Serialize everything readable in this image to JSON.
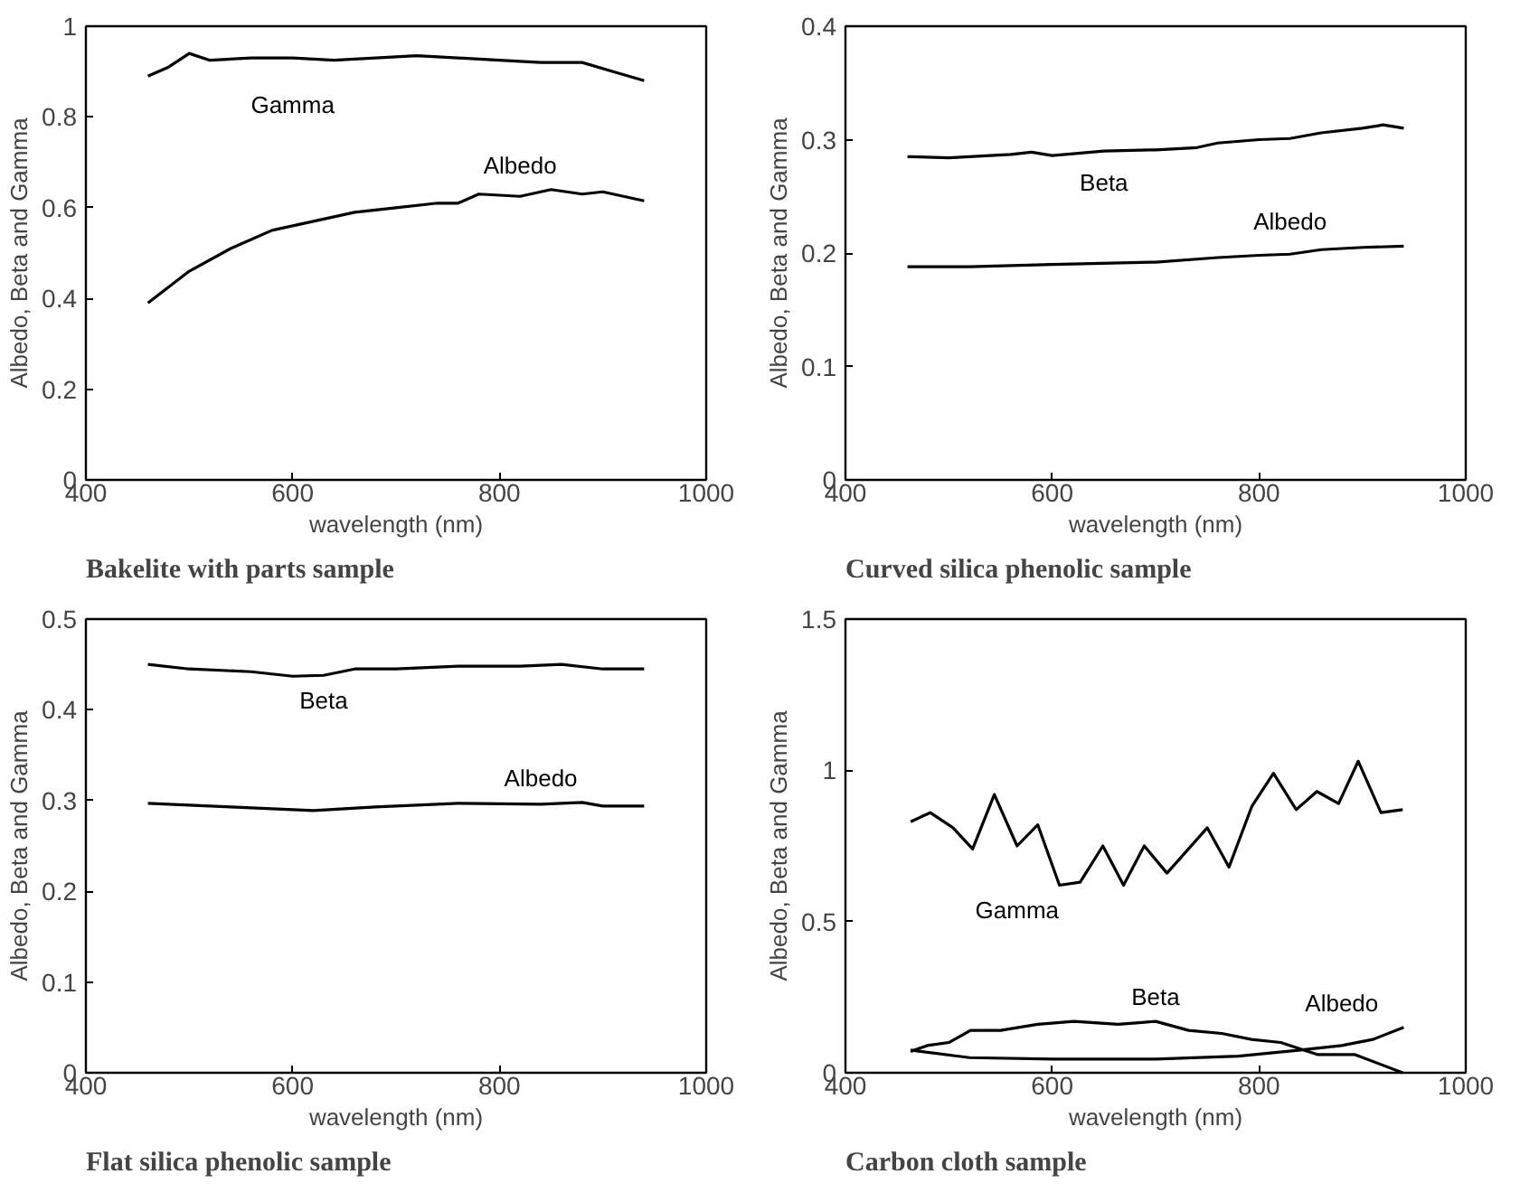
{
  "chart_data": [
    {
      "type": "line",
      "title": "Bakelite with parts sample",
      "xlabel": "wavelength (nm)",
      "ylabel": "Albedo, Beta and Gamma",
      "xlim": [
        400,
        1000
      ],
      "xticks": [
        400,
        600,
        800,
        1000
      ],
      "ylim": [
        0,
        1
      ],
      "yticks": [
        0,
        0.2,
        0.4,
        0.6,
        0.8,
        1
      ],
      "grid": false,
      "legend": false,
      "series": [
        {
          "name": "Gamma",
          "color": "#000000",
          "x": [
            460,
            480,
            500,
            520,
            560,
            600,
            640,
            680,
            720,
            760,
            800,
            840,
            880,
            910,
            940
          ],
          "values": [
            0.89,
            0.91,
            0.94,
            0.925,
            0.93,
            0.93,
            0.925,
            0.93,
            0.935,
            0.93,
            0.925,
            0.92,
            0.92,
            0.9,
            0.88
          ]
        },
        {
          "name": "Albedo",
          "color": "#000000",
          "x": [
            460,
            500,
            540,
            580,
            620,
            660,
            700,
            740,
            760,
            780,
            820,
            850,
            880,
            900,
            940
          ],
          "values": [
            0.39,
            0.46,
            0.51,
            0.55,
            0.57,
            0.59,
            0.6,
            0.61,
            0.61,
            0.63,
            0.625,
            0.64,
            0.63,
            0.635,
            0.615
          ]
        }
      ]
    },
    {
      "type": "line",
      "title": "Curved silica phenolic sample",
      "xlabel": "wavelength (nm)",
      "ylabel": "Albedo, Beta and Gamma",
      "xlim": [
        400,
        1000
      ],
      "xticks": [
        400,
        600,
        800,
        1000
      ],
      "ylim": [
        0,
        0.4
      ],
      "yticks": [
        0,
        0.1,
        0.2,
        0.3,
        0.4
      ],
      "grid": false,
      "legend": false,
      "series": [
        {
          "name": "Beta",
          "color": "#000000",
          "x": [
            460,
            500,
            560,
            580,
            600,
            650,
            700,
            740,
            760,
            800,
            830,
            860,
            900,
            920,
            940
          ],
          "values": [
            0.285,
            0.284,
            0.287,
            0.289,
            0.286,
            0.29,
            0.291,
            0.293,
            0.297,
            0.3,
            0.301,
            0.306,
            0.31,
            0.313,
            0.31
          ]
        },
        {
          "name": "Albedo",
          "color": "#000000",
          "x": [
            460,
            520,
            600,
            700,
            760,
            800,
            830,
            860,
            900,
            940
          ],
          "values": [
            0.188,
            0.188,
            0.19,
            0.192,
            0.196,
            0.198,
            0.199,
            0.203,
            0.205,
            0.206
          ]
        }
      ]
    },
    {
      "type": "line",
      "title": "Flat silica phenolic sample",
      "xlabel": "wavelength (nm)",
      "ylabel": "Albedo, Beta and Gamma",
      "xlim": [
        400,
        1000
      ],
      "xticks": [
        400,
        600,
        800,
        1000
      ],
      "ylim": [
        0,
        0.5
      ],
      "yticks": [
        0,
        0.1,
        0.2,
        0.3,
        0.4,
        0.5
      ],
      "grid": false,
      "legend": false,
      "series": [
        {
          "name": "Beta",
          "color": "#000000",
          "x": [
            460,
            500,
            560,
            600,
            630,
            660,
            700,
            760,
            820,
            860,
            900,
            940
          ],
          "values": [
            0.45,
            0.445,
            0.442,
            0.437,
            0.438,
            0.445,
            0.445,
            0.448,
            0.448,
            0.45,
            0.445,
            0.445
          ]
        },
        {
          "name": "Albedo",
          "color": "#000000",
          "x": [
            460,
            540,
            600,
            620,
            680,
            760,
            840,
            880,
            900,
            940
          ],
          "values": [
            0.297,
            0.293,
            0.29,
            0.289,
            0.293,
            0.297,
            0.296,
            0.298,
            0.294,
            0.294
          ]
        }
      ]
    },
    {
      "type": "line",
      "title": "Carbon cloth sample",
      "xlabel": "wavelength (nm)",
      "ylabel": "Albedo, Beta and Gamma",
      "xlim": [
        400,
        1000
      ],
      "xticks": [
        400,
        600,
        800,
        1000
      ],
      "ylim": [
        0,
        1.5
      ],
      "yticks": [
        0,
        0.5,
        1,
        1.5
      ],
      "grid": false,
      "legend": false,
      "series": [
        {
          "name": "Gamma",
          "color": "#000000",
          "x": [
            463,
            482,
            504,
            523,
            544,
            566,
            586,
            607,
            627,
            649,
            669,
            689,
            711,
            750,
            771,
            793,
            814,
            836,
            856,
            877,
            896,
            918,
            939
          ],
          "values": [
            0.83,
            0.86,
            0.81,
            0.74,
            0.92,
            0.75,
            0.82,
            0.62,
            0.63,
            0.75,
            0.62,
            0.75,
            0.66,
            0.81,
            0.68,
            0.88,
            0.99,
            0.87,
            0.93,
            0.89,
            1.03,
            0.86,
            0.87
          ]
        },
        {
          "name": "Beta",
          "color": "#000000",
          "x": [
            463,
            479,
            500,
            521,
            550,
            586,
            621,
            664,
            700,
            732,
            764,
            793,
            821,
            857,
            893,
            939
          ],
          "values": [
            0.07,
            0.09,
            0.1,
            0.14,
            0.14,
            0.16,
            0.17,
            0.16,
            0.17,
            0.14,
            0.13,
            0.11,
            0.1,
            0.06,
            0.06,
            0.0
          ]
        },
        {
          "name": "Albedo",
          "color": "#000000",
          "x": [
            463,
            520,
            600,
            700,
            780,
            840,
            880,
            910,
            940
          ],
          "values": [
            0.075,
            0.05,
            0.045,
            0.045,
            0.055,
            0.075,
            0.09,
            0.11,
            0.15
          ]
        }
      ]
    }
  ]
}
